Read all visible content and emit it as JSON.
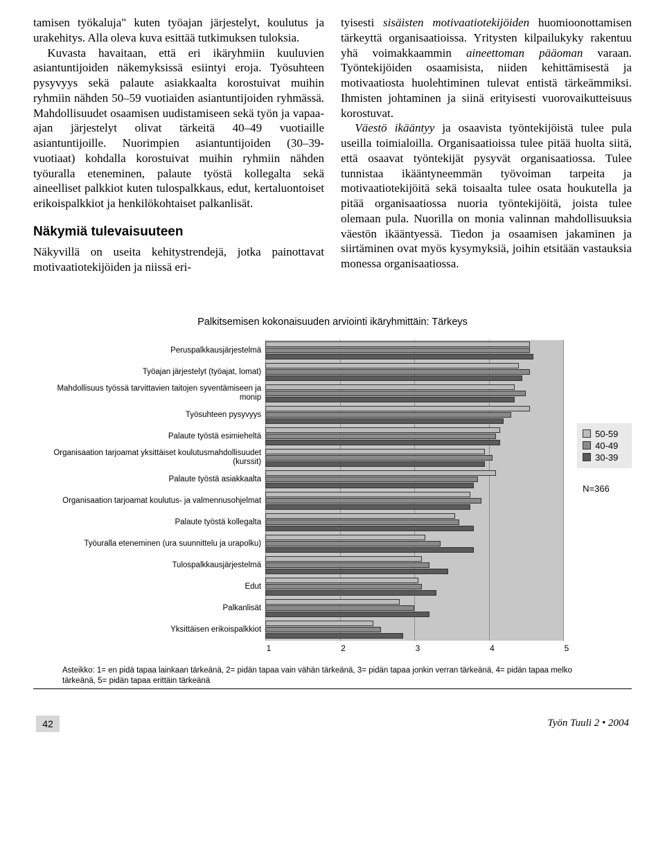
{
  "text": {
    "col1_p1": "tamisen työkaluja\" kuten työajan järjestelyt, koulutus ja urakehitys. Alla oleva kuva esittää tutkimuksen tuloksia.",
    "col1_p2_a": "Kuvasta havaitaan, että eri ikäryhmiin kuuluvien asiantuntijoiden näkemyksissä esiintyi eroja. Työsuhteen pysyvyys sekä palaute asiakkaalta korostuivat muihin ryhmiin nähden 50–59 vuotiaiden asiantuntijoiden ryhmässä. Mahdollisuudet osaamisen uudistamiseen sekä työn ja vapaa-ajan järjestelyt olivat tärkeitä 40–49 vuotiaille asiantuntijoille. Nuorimpien asiantuntijoiden (30–39-vuotiaat) kohdalla korostuivat muihin ryhmiin nähden työuralla eteneminen, palaute työstä kollegalta sekä aineelliset palkkiot kuten tulospalkkaus, edut, kertaluontoiset erikoispalkkiot ja henkilökohtaiset palkanlisät.",
    "subhead": "Näkymiä tulevaisuuteen",
    "col1_p3": "Näkyvillä on useita kehitystrendejä, jotka painottavat motivaatiotekijöiden ja niissä eri-",
    "col2_p1_a": "tyisesti ",
    "col2_p1_i1": "sisäisten motivaatiotekijöiden",
    "col2_p1_b": " huomioonottamisen tärkeyttä organisaatioissa. Yritysten kilpailukyky rakentuu yhä voimakkaammin ",
    "col2_p1_i2": "aineettoman pääoman",
    "col2_p1_c": " varaan. Työntekijöiden osaamisista, niiden kehittämisestä ja motivaatiosta huolehtiminen tulevat entistä tärkeämmiksi. Ihmisten johtaminen ja siinä erityisesti vuorovaikutteisuus korostuvat.",
    "col2_p2_i": "Väestö ikääntyy",
    "col2_p2": " ja osaavista työntekijöistä tulee pula useilla toimialoilla. Organisaatioissa tulee pitää huolta siitä, että osaavat työntekijät pysyvät organisaatiossa. Tulee tunnistaa ikääntyneemmän työvoiman tarpeita ja motivaatiotekijöitä sekä toisaalta tulee osata houkutella ja pitää organisaatiossa nuoria työntekijöitä, joista tulee olemaan pula. Nuorilla on monia valinnan mahdollisuuksia väestön ikääntyessä. Tiedon ja osaamisen jakaminen ja siirtäminen ovat myös kysymyksiä, joihin etsitään vastauksia monessa organisaatiossa."
  },
  "chart": {
    "title": "Palkitsemisen kokonaisuuden arviointi ikäryhmittäin: Tärkeys",
    "categories": [
      "Peruspalkkausjärjestelmä",
      "Työajan järjestelyt (työajat, lomat)",
      "Mahdollisuus työssä tarvittavien taitojen syventämiseen ja monip",
      "Työsuhteen pysyvyys",
      "Palaute työstä esimieheltä",
      "Organisaation tarjoamat yksittäiset koulutusmahdollisuudet (kurssit)",
      "Palaute työstä asiakkaalta",
      "Organisaation tarjoamat koulutus- ja valmennusohjelmat",
      "Palaute työstä kollegalta",
      "Työuralla eteneminen (ura suunnittelu ja urapolku)",
      "Tulospalkkausjärjestelmä",
      "Edut",
      "Palkanlisät",
      "Yksittäisen erikoispalkkiot"
    ],
    "series": [
      {
        "name": "50-59",
        "color": "#bcbcbc",
        "values": [
          4.55,
          4.4,
          4.35,
          4.55,
          4.15,
          3.95,
          4.1,
          3.75,
          3.55,
          3.15,
          3.1,
          3.05,
          2.8,
          2.45
        ]
      },
      {
        "name": "40-49",
        "color": "#8a8a8a",
        "values": [
          4.55,
          4.55,
          4.5,
          4.3,
          4.1,
          4.05,
          3.85,
          3.9,
          3.6,
          3.35,
          3.2,
          3.1,
          3.0,
          2.55
        ]
      },
      {
        "name": "30-39",
        "color": "#5a5a5a",
        "values": [
          4.6,
          4.45,
          4.35,
          4.2,
          4.15,
          3.95,
          3.8,
          3.75,
          3.8,
          3.8,
          3.45,
          3.3,
          3.2,
          2.85
        ]
      }
    ],
    "xmin": 1,
    "xmax": 5,
    "xticks": [
      1,
      2,
      3,
      4,
      5
    ],
    "background": "#c7c7c7",
    "grid_color": "#8a8a8a",
    "n_label": "N=366",
    "scale_caption": "Asteikko: 1= en pidä tapaa lainkaan tärkeänä, 2= pidän tapaa vain vähän tärkeänä, 3= pidän tapaa jonkin verran tärkeänä, 4= pidän tapaa melko tärkeänä, 5= pidän tapaa erittäin tärkeänä"
  },
  "footer": {
    "page": "42",
    "pub": "Työn Tuuli  2 • 2004"
  }
}
